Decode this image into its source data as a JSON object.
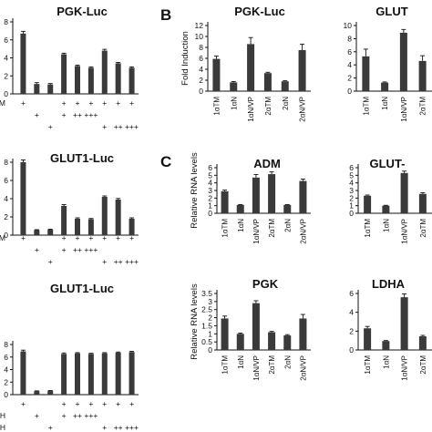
{
  "panel_letters": [
    "B",
    "C"
  ],
  "chart_data": [
    {
      "id": "a1",
      "type": "bar",
      "title": "PGK-Luc",
      "ylabel": "",
      "ylim": [
        0,
        8
      ],
      "yticks": [
        "0",
        "2",
        "4",
        "6",
        "8"
      ],
      "yticks_clip": "left",
      "values": [
        6.7,
        1.1,
        1.05,
        4.4,
        3.1,
        2.9,
        4.8,
        3.4,
        2.9
      ],
      "errors": [
        0.25,
        0.15,
        0.1,
        0.12,
        0.1,
        0.1,
        0.15,
        0.1,
        0.1
      ],
      "treatment_rows": [
        {
          "label": "M",
          "marks": [
            "+",
            "",
            "",
            "+",
            "+",
            "+",
            "+",
            "+",
            "+"
          ]
        },
        {
          "label": "",
          "marks": [
            "",
            "+",
            "",
            "+",
            "++",
            "+++",
            "",
            "",
            ""
          ]
        },
        {
          "label": "",
          "marks": [
            "",
            "",
            "+",
            "",
            "",
            "",
            "+",
            "++",
            "+++"
          ]
        }
      ]
    },
    {
      "id": "a2",
      "type": "bar",
      "title": "GLUT1-Luc",
      "ylabel": "",
      "ylim": [
        0,
        8
      ],
      "yticks": [
        "0",
        "2",
        "4",
        "6",
        "8"
      ],
      "yticks_clip": "left",
      "values": [
        8.0,
        0.55,
        0.6,
        3.2,
        1.8,
        1.75,
        4.2,
        3.9,
        1.8
      ],
      "errors": [
        0.25,
        0.05,
        0.05,
        0.15,
        0.1,
        0.08,
        0.1,
        0.12,
        0.1
      ],
      "treatment_rows": [
        {
          "label": "TM",
          "marks": [
            "+",
            "",
            "",
            "+",
            "+",
            "+",
            "+",
            "+",
            "+"
          ]
        },
        {
          "label": "",
          "marks": [
            "",
            "+",
            "",
            "+",
            "++",
            "+++",
            "",
            "",
            ""
          ]
        },
        {
          "label": "",
          "marks": [
            "",
            "",
            "+",
            "",
            "",
            "",
            "+",
            "++",
            "+++"
          ]
        }
      ]
    },
    {
      "id": "a3",
      "type": "bar",
      "title": "GLUT1-Luc",
      "ylabel": "",
      "ylim": [
        0,
        8
      ],
      "yticks": [
        "0",
        "2",
        "4",
        "6",
        "8"
      ],
      "yticks_clip": "left",
      "values": [
        6.9,
        0.55,
        0.6,
        6.5,
        6.6,
        6.5,
        6.6,
        6.7,
        6.8
      ],
      "errors": [
        0.2,
        0.05,
        0.05,
        0.15,
        0.1,
        0.1,
        0.1,
        0.1,
        0.1
      ],
      "treatment_rows": [
        {
          "label": "",
          "marks": [
            "+",
            "",
            "",
            "+",
            "+",
            "+",
            "+",
            "+",
            "+"
          ]
        },
        {
          "label": "HLH",
          "marks": [
            "",
            "+",
            "",
            "+",
            "++",
            "+++",
            "",
            "",
            ""
          ]
        },
        {
          "label": "HLH",
          "marks": [
            "",
            "",
            "+",
            "",
            "",
            "",
            "+",
            "++",
            "+++"
          ]
        }
      ]
    },
    {
      "id": "b1",
      "type": "bar",
      "title": "PGK-Luc",
      "ylabel": "Fold Induction",
      "ylim": [
        0,
        12
      ],
      "yticks": [
        "0",
        "2",
        "4",
        "6",
        "8",
        "10",
        "12"
      ],
      "categories": [
        "1αTM",
        "1αN",
        "1αN/VP",
        "2αTM",
        "2αN",
        "2αN/VP"
      ],
      "values": [
        5.9,
        1.6,
        8.6,
        3.3,
        1.8,
        7.5
      ],
      "errors": [
        0.5,
        0.15,
        1.2,
        0.15,
        0.1,
        1.1
      ]
    },
    {
      "id": "b2",
      "type": "bar",
      "title": "GLUT",
      "ylabel": "",
      "ylim": [
        0,
        10
      ],
      "yticks": [
        "0",
        "2",
        "4",
        "6",
        "8",
        "10"
      ],
      "categories": [
        "1αTM",
        "1αN",
        "1αN/VP",
        "2αTM"
      ],
      "values": [
        5.3,
        1.3,
        8.9,
        4.6
      ],
      "errors": [
        1.1,
        0.1,
        0.5,
        0.8
      ]
    },
    {
      "id": "c1",
      "type": "bar",
      "title": "ADM",
      "ylabel": "Relative RNA levels",
      "ylim": [
        0,
        6
      ],
      "yticks": [
        "0",
        "1",
        "2",
        "3",
        "4",
        "5",
        "6"
      ],
      "categories": [
        "1αTM",
        "1αN",
        "1αN/VP",
        "2αTM",
        "2αN",
        "2αN/VP"
      ],
      "values": [
        2.9,
        1.1,
        4.7,
        5.15,
        1.1,
        4.25
      ],
      "errors": [
        0.15,
        0.05,
        0.4,
        0.3,
        0.05,
        0.25
      ]
    },
    {
      "id": "c2",
      "type": "bar",
      "title": "GLUT-",
      "ylabel": "",
      "ylim": [
        0,
        6
      ],
      "yticks": [
        "0",
        "1",
        "2",
        "3",
        "4",
        "5",
        "6"
      ],
      "categories": [
        "1αTM",
        "1αN",
        "1αN/VP",
        "2αTM"
      ],
      "values": [
        2.3,
        1.0,
        5.3,
        2.55
      ],
      "errors": [
        0.1,
        0.05,
        0.25,
        0.15
      ]
    },
    {
      "id": "c3",
      "type": "bar",
      "title": "PGK",
      "ylabel": "Relative RNA levels",
      "ylim": [
        0,
        3.5
      ],
      "yticks": [
        "0",
        "0.5",
        "1",
        "1.5",
        "2",
        "2.5",
        "3",
        "3.5"
      ],
      "categories": [
        "1αTM",
        "1αN",
        "1αN/VP",
        "2αTM",
        "2αN",
        "2αN/VP"
      ],
      "values": [
        1.95,
        1.0,
        2.9,
        1.1,
        0.9,
        1.95
      ],
      "errors": [
        0.15,
        0.05,
        0.15,
        0.05,
        0.05,
        0.25
      ]
    },
    {
      "id": "c4",
      "type": "bar",
      "title": "LDHA",
      "ylabel": "",
      "ylim": [
        0,
        6
      ],
      "yticks": [
        "0",
        "2",
        "4",
        "6"
      ],
      "categories": [
        "1αTM",
        "1αN",
        "1αN/VP",
        "2αTM"
      ],
      "values": [
        2.3,
        0.95,
        5.6,
        1.45
      ],
      "errors": [
        0.2,
        0.05,
        0.35,
        0.1
      ]
    }
  ]
}
